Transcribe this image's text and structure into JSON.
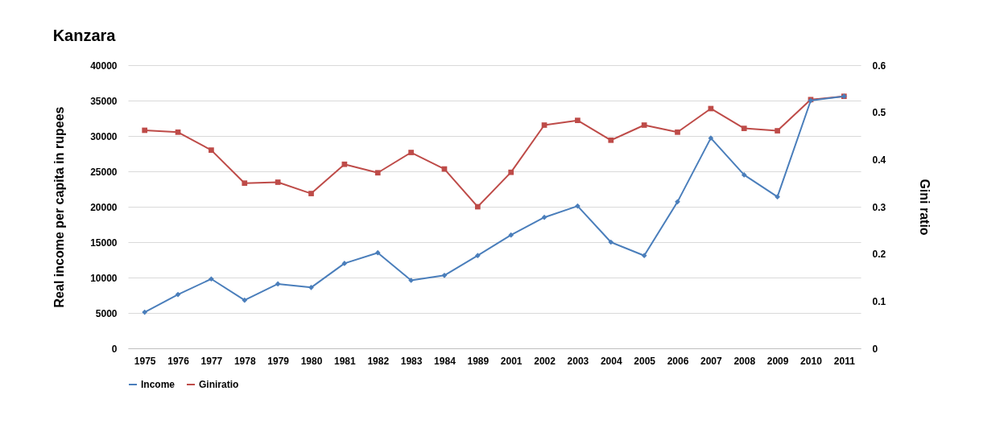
{
  "chart_data": {
    "type": "line",
    "title": "Kanzara",
    "ylabel": "Real income per capita in rupees",
    "y2label": "Gini ratio",
    "categories": [
      "1975",
      "1976",
      "1977",
      "1978",
      "1979",
      "1980",
      "1981",
      "1982",
      "1983",
      "1984",
      "1989",
      "2001",
      "2002",
      "2003",
      "2004",
      "2005",
      "2006",
      "2007",
      "2008",
      "2009",
      "2010",
      "2011"
    ],
    "series": [
      {
        "name": "Income",
        "color": "#4a7ebb",
        "marker": "diamond",
        "values": [
          5100,
          7600,
          9800,
          6800,
          9100,
          8600,
          12000,
          13500,
          9600,
          10300,
          13100,
          16000,
          18500,
          20100,
          15000,
          13100,
          20700,
          29700,
          24500,
          21400,
          35000,
          35600
        ]
      },
      {
        "name": "Giniratio",
        "color": "#be4b48",
        "marker": "square",
        "axis": "y2",
        "values": [
          0.462,
          0.458,
          0.42,
          0.35,
          0.352,
          0.328,
          0.39,
          0.372,
          0.415,
          0.38,
          0.3,
          0.373,
          0.473,
          0.483,
          0.441,
          0.473,
          0.458,
          0.508,
          0.466,
          0.461,
          0.527,
          0.534
        ]
      }
    ],
    "ylim": [
      0,
      40000
    ],
    "yticks": [
      0,
      5000,
      10000,
      15000,
      20000,
      25000,
      30000,
      35000,
      40000
    ],
    "y2lim": [
      0,
      0.6
    ],
    "y2ticks": [
      0,
      0.1,
      0.2,
      0.3,
      0.4,
      0.5,
      0.6
    ],
    "grid": "y",
    "legend": "bottom"
  }
}
